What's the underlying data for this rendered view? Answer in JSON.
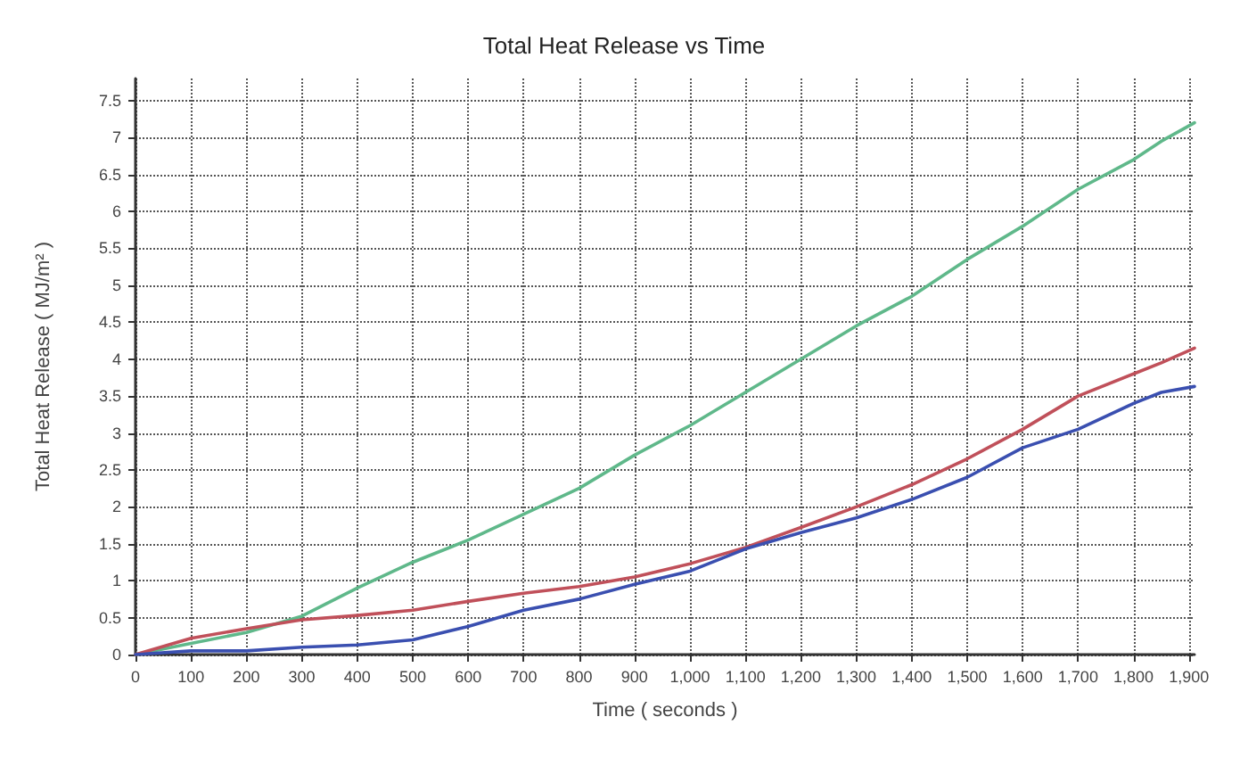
{
  "chart_data": {
    "type": "line",
    "title": "Total Heat Release vs Time",
    "xlabel": "Time ( seconds )",
    "ylabel": "Total Heat Release ( MJ/m² )",
    "x": [
      0,
      100,
      200,
      300,
      400,
      500,
      600,
      700,
      800,
      900,
      1000,
      1100,
      1200,
      1300,
      1400,
      1500,
      1600,
      1700,
      1800,
      1850,
      1910
    ],
    "series": [
      {
        "color": "#5fb88a",
        "values": [
          0,
          0.15,
          0.3,
          0.52,
          0.9,
          1.25,
          1.55,
          1.9,
          2.25,
          2.7,
          3.1,
          3.55,
          4.0,
          4.45,
          4.85,
          5.35,
          5.8,
          6.3,
          6.7,
          6.95,
          7.2
        ]
      },
      {
        "color": "#c0505a",
        "values": [
          0,
          0.22,
          0.35,
          0.47,
          0.53,
          0.6,
          0.72,
          0.83,
          0.92,
          1.05,
          1.23,
          1.45,
          1.72,
          2.0,
          2.3,
          2.65,
          3.05,
          3.5,
          3.8,
          3.95,
          4.15
        ]
      },
      {
        "color": "#3a4fb0",
        "values": [
          0,
          0.05,
          0.05,
          0.1,
          0.13,
          0.2,
          0.38,
          0.6,
          0.75,
          0.95,
          1.13,
          1.43,
          1.65,
          1.85,
          2.1,
          2.4,
          2.8,
          3.05,
          3.4,
          3.55,
          3.63
        ]
      }
    ],
    "xlim": [
      0,
      1910
    ],
    "xticks": [
      0,
      100,
      200,
      300,
      400,
      500,
      600,
      700,
      800,
      900,
      {
        "value": 1000,
        "label": "1,000"
      },
      {
        "value": 1100,
        "label": "1,100"
      },
      {
        "value": 1200,
        "label": "1,200"
      },
      {
        "value": 1300,
        "label": "1,300"
      },
      {
        "value": 1400,
        "label": "1,400"
      },
      {
        "value": 1500,
        "label": "1,500"
      },
      {
        "value": 1600,
        "label": "1,600"
      },
      {
        "value": 1700,
        "label": "1,700"
      },
      {
        "value": 1800,
        "label": "1,800"
      },
      {
        "value": 1900,
        "label": "1,900"
      }
    ],
    "ylim": [
      0,
      7.8
    ],
    "yticks": [
      0,
      0.5,
      1,
      1.5,
      2,
      2.5,
      3,
      3.5,
      4,
      4.5,
      5,
      5.5,
      6,
      6.5,
      7,
      7.5
    ],
    "grid": true,
    "marker": "none",
    "line_style": "solid"
  }
}
